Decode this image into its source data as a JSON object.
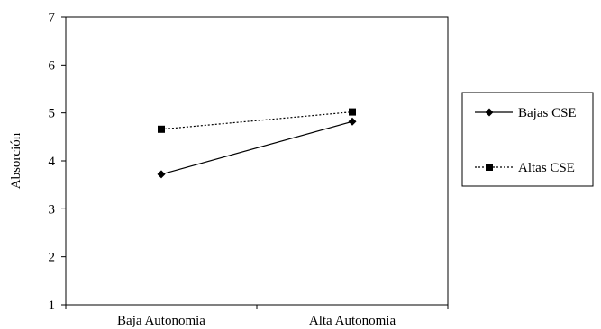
{
  "chart_data": {
    "type": "line",
    "categories": [
      "Baja Autonomia",
      "Alta Autonomia"
    ],
    "series": [
      {
        "name": "Bajas CSE",
        "values": [
          3.72,
          4.82
        ],
        "line_style": "solid",
        "marker": "diamond",
        "color": "#000000"
      },
      {
        "name": "Altas CSE",
        "values": [
          4.66,
          5.02
        ],
        "line_style": "dotted",
        "marker": "square",
        "color": "#000000"
      }
    ],
    "title": "",
    "xlabel": "",
    "ylabel": "Absorción",
    "ylim": [
      1,
      7
    ],
    "yticks": [
      1,
      2,
      3,
      4,
      5,
      6,
      7
    ],
    "grid": false,
    "legend_position": "right"
  }
}
